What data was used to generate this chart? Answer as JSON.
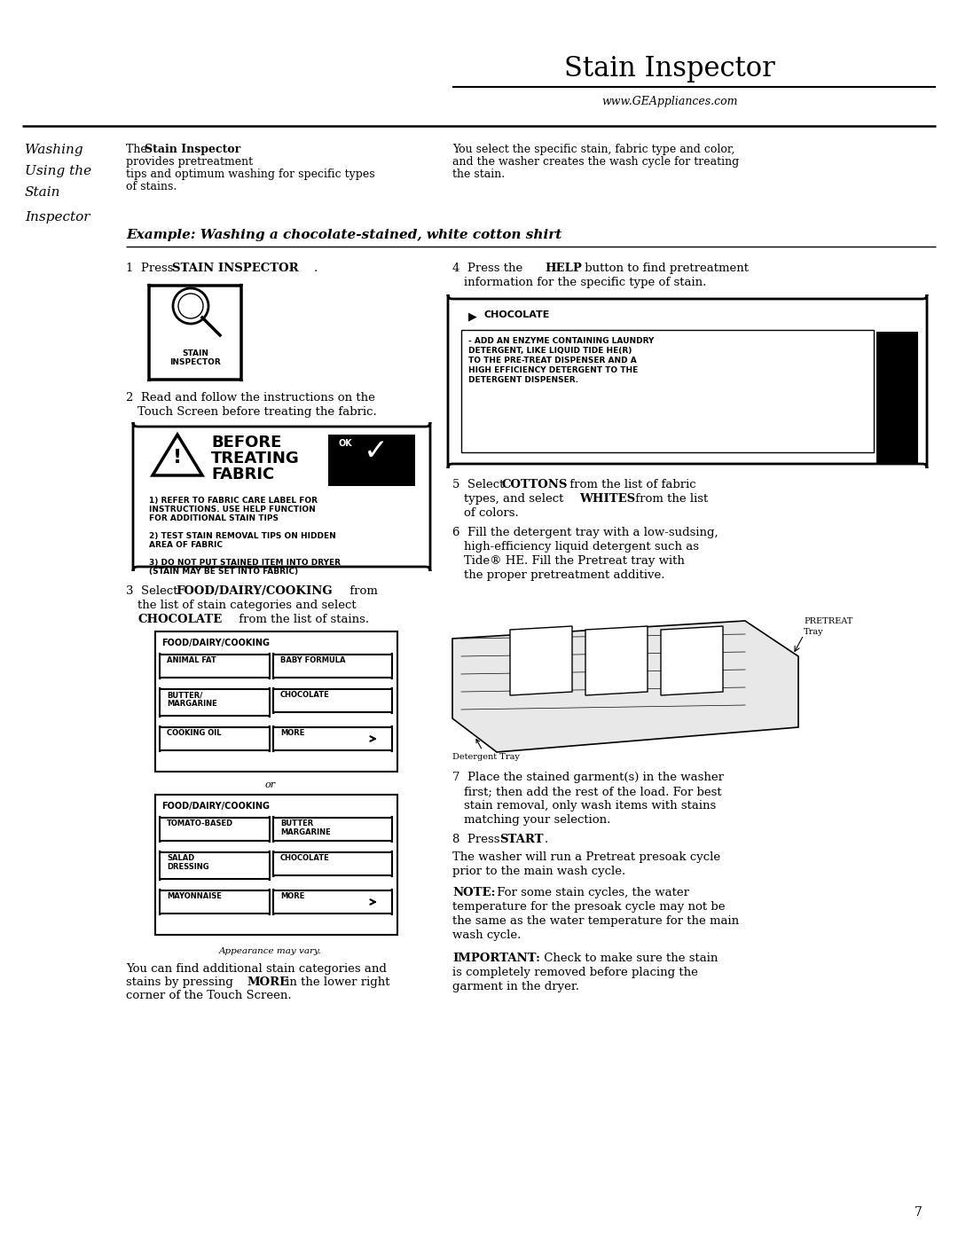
{
  "page_title": "Stain Inspector",
  "website": "www.GEAppliances.com",
  "left_heading_lines": [
    "Washing",
    "Using the",
    "Stain",
    "Inspector"
  ],
  "bg_color": "#ffffff",
  "text_color": "#000000",
  "page_number": "7",
  "appearance_note": "Appearance may vary."
}
